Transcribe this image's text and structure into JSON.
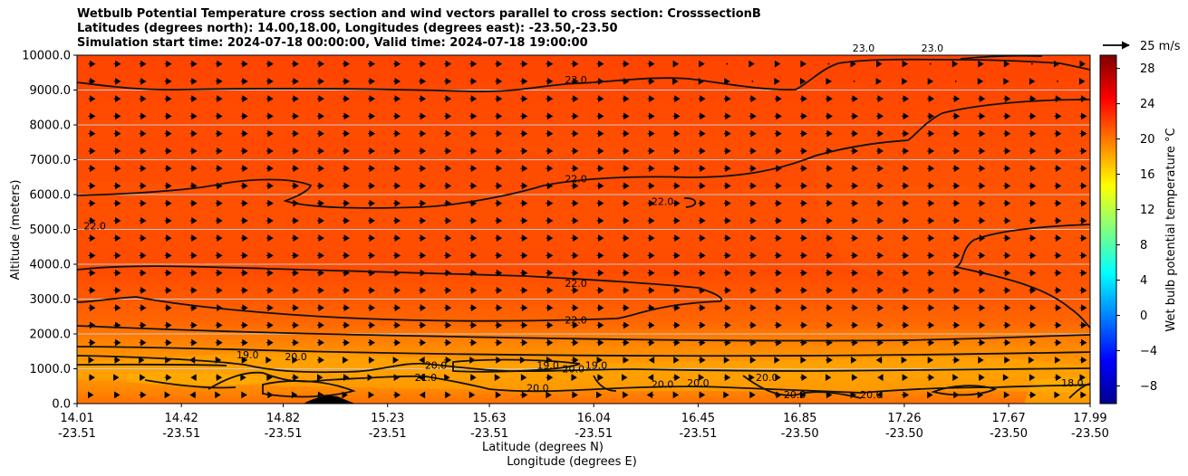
{
  "chart_data": {
    "type": "heatmap",
    "title_lines": [
      "Wetbulb Potential Temperature cross section and wind vectors parallel to cross section: CrosssectionB",
      "Latitudes (degrees north): 14.00,18.00, Longitudes (degrees east): -23.50,-23.50",
      "Simulation start time: 2024-07-18 00:00:00, Valid time: 2024-07-18 19:00:00"
    ],
    "ylabel": "Altitude (meters)",
    "xlabel_lat": "Latitude (degrees N)",
    "xlabel_lon": "Longitude (degrees E)",
    "colorbar_label": "Wet bulb potential temperature °C",
    "quiver_key_label": "25 m/s",
    "ylim": [
      0,
      10000
    ],
    "yticks": [
      "0.0",
      "1000.0",
      "2000.0",
      "3000.0",
      "4000.0",
      "5000.0",
      "6000.0",
      "7000.0",
      "8000.0",
      "9000.0",
      "10000.0"
    ],
    "ytick_values": [
      0,
      1000,
      2000,
      3000,
      4000,
      5000,
      6000,
      7000,
      8000,
      9000,
      10000
    ],
    "xticks_lat": [
      "14.01",
      "14.42",
      "14.82",
      "15.23",
      "15.63",
      "16.04",
      "16.45",
      "16.85",
      "17.26",
      "17.67",
      "17.99"
    ],
    "xticks_lon": [
      "-23.51",
      "-23.51",
      "-23.51",
      "-23.51",
      "-23.51",
      "-23.51",
      "-23.51",
      "-23.50",
      "-23.50",
      "-23.50",
      "-23.50"
    ],
    "xtick_values": [
      14.01,
      14.42,
      14.82,
      15.23,
      15.63,
      16.04,
      16.45,
      16.85,
      17.26,
      17.67,
      17.99
    ],
    "xlim": [
      14.01,
      17.99
    ],
    "colorbar_ticks": [
      "−8",
      "−4",
      "0",
      "4",
      "8",
      "12",
      "16",
      "20",
      "24",
      "28"
    ],
    "colorbar_tick_values": [
      -8,
      -4,
      0,
      4,
      8,
      12,
      16,
      20,
      24,
      28
    ],
    "colorbar_range": [
      -10,
      29.5
    ],
    "contour_labels": [
      {
        "text": "23.0",
        "x": 15.97,
        "y": 9200
      },
      {
        "text": "22.0",
        "x": 15.97,
        "y": 6350
      },
      {
        "text": "22.0",
        "x": 16.31,
        "y": 5700
      },
      {
        "text": "22.0",
        "x": 14.08,
        "y": 5000
      },
      {
        "text": "22.0",
        "x": 15.97,
        "y": 3350
      },
      {
        "text": "22.0",
        "x": 15.97,
        "y": 2300
      },
      {
        "text": "19.0",
        "x": 14.68,
        "y": 1300
      },
      {
        "text": "20.0",
        "x": 14.87,
        "y": 1250
      },
      {
        "text": "20.0",
        "x": 15.42,
        "y": 1000
      },
      {
        "text": "21.0",
        "x": 15.38,
        "y": 650
      },
      {
        "text": "19.0",
        "x": 15.86,
        "y": 1000
      },
      {
        "text": "20.0",
        "x": 15.96,
        "y": 900
      },
      {
        "text": "19.0",
        "x": 16.05,
        "y": 1000
      },
      {
        "text": "20.0",
        "x": 15.82,
        "y": 350
      },
      {
        "text": "20.0",
        "x": 16.31,
        "y": 450
      },
      {
        "text": "20.0",
        "x": 16.45,
        "y": 500
      },
      {
        "text": "20.0",
        "x": 16.72,
        "y": 650
      },
      {
        "text": "20.0",
        "x": 16.83,
        "y": 150
      },
      {
        "text": "20.0",
        "x": 17.13,
        "y": 150
      },
      {
        "text": "18.0",
        "x": 17.92,
        "y": 500
      },
      {
        "text": "23.0",
        "x": 17.1,
        "y": 10100
      },
      {
        "text": "23.0",
        "x": 17.37,
        "y": 10100
      }
    ]
  }
}
